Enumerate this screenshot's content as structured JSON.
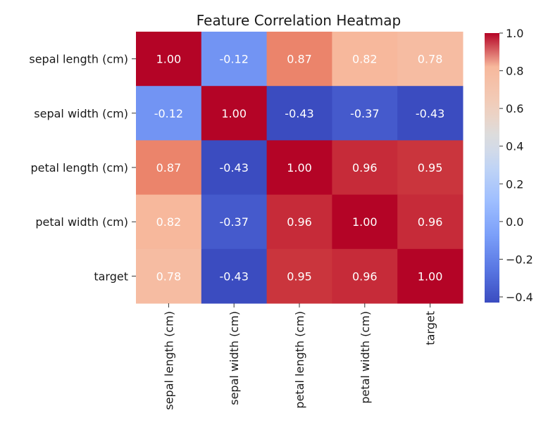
{
  "chart_data": {
    "type": "heatmap",
    "title": "Feature Correlation Heatmap",
    "rows": [
      "sepal length (cm)",
      "sepal width (cm)",
      "petal length (cm)",
      "petal width (cm)",
      "target"
    ],
    "columns": [
      "sepal length (cm)",
      "sepal width (cm)",
      "petal length (cm)",
      "petal width (cm)",
      "target"
    ],
    "values": [
      [
        1.0,
        -0.12,
        0.87,
        0.82,
        0.78
      ],
      [
        -0.12,
        1.0,
        -0.43,
        -0.37,
        -0.43
      ],
      [
        0.87,
        -0.43,
        1.0,
        0.96,
        0.95
      ],
      [
        0.82,
        -0.37,
        0.96,
        1.0,
        0.96
      ],
      [
        0.78,
        -0.43,
        0.95,
        0.96,
        1.0
      ]
    ],
    "value_labels": [
      [
        "1.00",
        "-0.12",
        "0.87",
        "0.82",
        "0.78"
      ],
      [
        "-0.12",
        "1.00",
        "-0.43",
        "-0.37",
        "-0.43"
      ],
      [
        "0.87",
        "-0.43",
        "1.00",
        "0.96",
        "0.95"
      ],
      [
        "0.82",
        "-0.37",
        "0.96",
        "1.00",
        "0.96"
      ],
      [
        "0.78",
        "-0.43",
        "0.95",
        "0.96",
        "1.00"
      ]
    ],
    "colormap": "coolwarm",
    "vmin": -0.43,
    "vmax": 1.0,
    "colorbar": {
      "ticks": [
        1.0,
        0.8,
        0.6,
        0.4,
        0.2,
        0.0,
        -0.2,
        -0.4
      ],
      "tick_labels": [
        "1.0",
        "0.8",
        "0.6",
        "0.4",
        "0.2",
        "0.0",
        "−0.2",
        "−0.4"
      ]
    }
  }
}
